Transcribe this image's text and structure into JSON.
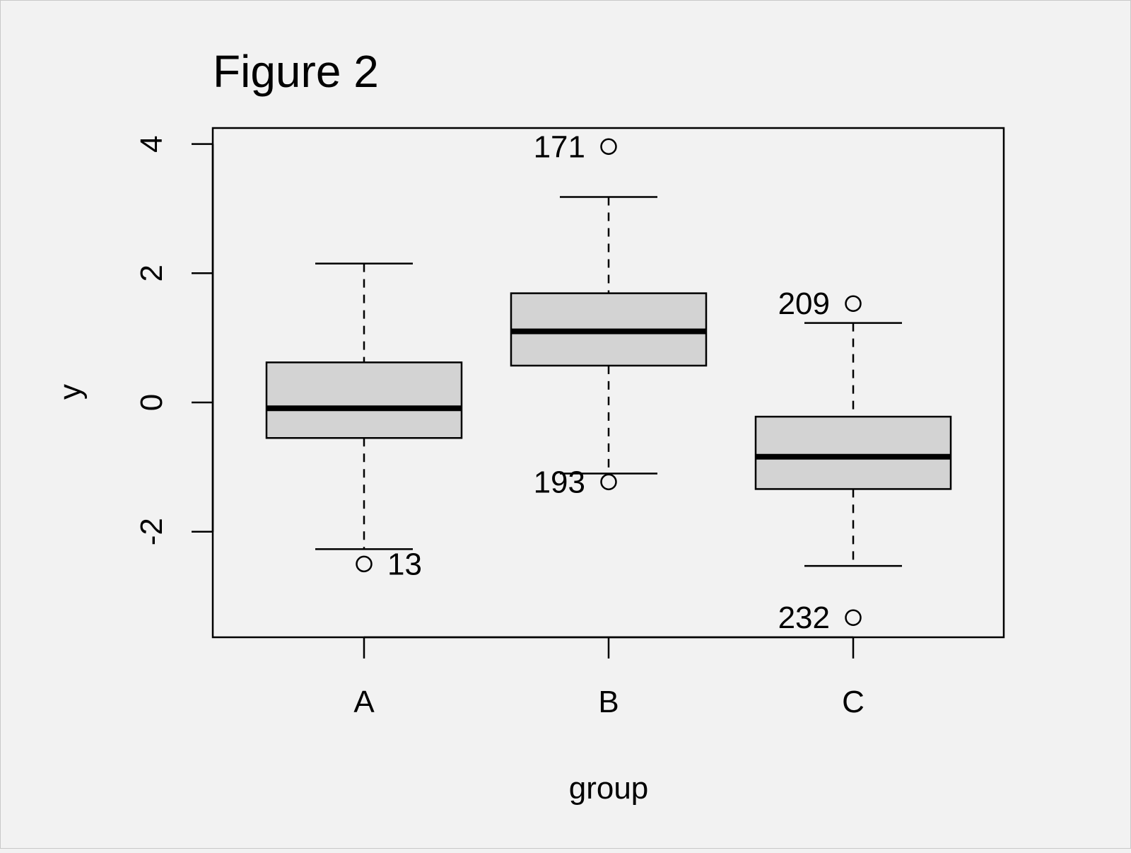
{
  "chart_data": {
    "type": "boxplot",
    "title": "Figure 2",
    "xlabel": "group",
    "ylabel": "y",
    "ylim": [
      -3.6,
      4.3
    ],
    "yticks": [
      -2,
      0,
      2,
      4
    ],
    "ytick_labels": [
      "-2",
      "0",
      "2",
      "4"
    ],
    "categories": [
      "A",
      "B",
      "C"
    ],
    "box_fill": "#d3d3d3",
    "boxes": [
      {
        "category": "A",
        "whisker_low": -2.27,
        "q1": -0.55,
        "median": -0.09,
        "q3": 0.62,
        "whisker_high": 2.15,
        "outliers": [
          {
            "value": -2.5,
            "label": "13",
            "label_side": "right"
          }
        ]
      },
      {
        "category": "B",
        "whisker_low": -1.1,
        "q1": 0.57,
        "median": 1.1,
        "q3": 1.69,
        "whisker_high": 3.18,
        "outliers": [
          {
            "value": 3.96,
            "label": "171",
            "label_side": "left"
          },
          {
            "value": -1.23,
            "label": "193",
            "label_side": "left"
          }
        ]
      },
      {
        "category": "C",
        "whisker_low": -2.53,
        "q1": -1.34,
        "median": -0.84,
        "q3": -0.22,
        "whisker_high": 1.23,
        "outliers": [
          {
            "value": 1.53,
            "label": "209",
            "label_side": "left"
          },
          {
            "value": -3.33,
            "label": "232",
            "label_side": "left"
          }
        ]
      }
    ],
    "grid": false,
    "legend": "none"
  }
}
